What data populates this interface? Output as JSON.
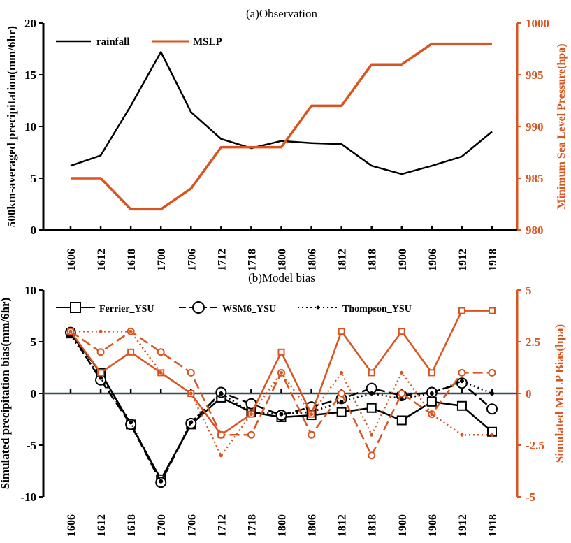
{
  "chart_data": [
    {
      "type": "line",
      "title": "(a)Observation",
      "categories": [
        "1606",
        "1612",
        "1618",
        "1700",
        "1706",
        "1712",
        "1718",
        "1800",
        "1806",
        "1812",
        "1818",
        "1900",
        "1906",
        "1912",
        "1918"
      ],
      "ylabel_left": "500km-averaged precipitation(mm/6hr)",
      "ylabel_right": "Minimum Sea Level Pressure(hpa)",
      "ylim_left": [
        0,
        20
      ],
      "ylim_right": [
        980,
        1000
      ],
      "yticks_left": [
        "0",
        "5",
        "10",
        "15",
        "20"
      ],
      "yticks_right": [
        "980",
        "985",
        "990",
        "995",
        "1000"
      ],
      "legend_position": "top-left",
      "series": [
        {
          "name": "rainfall",
          "axis": "left",
          "color": "#000000",
          "values": [
            6.2,
            7.2,
            12.0,
            17.2,
            11.4,
            8.8,
            7.9,
            8.6,
            8.4,
            8.3,
            6.2,
            5.4,
            6.2,
            7.1,
            9.5
          ]
        },
        {
          "name": "MSLP",
          "axis": "right",
          "color": "#d9541e",
          "values": [
            985,
            985,
            982,
            982,
            984,
            988,
            988,
            988,
            992,
            992,
            996,
            996,
            998,
            998,
            998
          ]
        }
      ]
    },
    {
      "type": "line",
      "title": "(b)Model bias",
      "categories": [
        "1606",
        "1612",
        "1618",
        "1700",
        "1706",
        "1712",
        "1718",
        "1800",
        "1806",
        "1812",
        "1818",
        "1900",
        "1906",
        "1912",
        "1918"
      ],
      "ylabel_left": "Simulated precipitation bias(mm/6hr)",
      "ylabel_right": "Simulated MSLP Bias(hpa)",
      "ylim_left": [
        -10,
        10
      ],
      "ylim_right": [
        -5,
        5
      ],
      "yticks_left": [
        "-10",
        "-5",
        "0",
        "5",
        "10"
      ],
      "yticks_right": [
        "-5",
        "-2.5",
        "0",
        "2.5",
        "5"
      ],
      "legend_position": "top",
      "zero_line": true,
      "series": [
        {
          "name": "Ferrier_YSU",
          "axis": "left",
          "color": "#000000",
          "style": "solid",
          "marker": "square",
          "values": [
            5.8,
            2.0,
            -3.0,
            -8.3,
            -3.0,
            -0.4,
            -1.8,
            -2.3,
            -2.1,
            -1.8,
            -1.4,
            -2.6,
            -0.8,
            -1.2,
            -3.7
          ]
        },
        {
          "name": "WSM6_YSU",
          "axis": "left",
          "color": "#000000",
          "style": "dashed",
          "marker": "circle",
          "values": [
            5.9,
            1.3,
            -3.0,
            -8.6,
            -2.9,
            0.1,
            -1.0,
            -2.1,
            -1.3,
            -0.5,
            0.5,
            -0.2,
            0.1,
            1.0,
            -1.5
          ]
        },
        {
          "name": "Thompson_YSU",
          "axis": "left",
          "color": "#000000",
          "style": "dotted",
          "marker": "dot",
          "values": [
            5.6,
            1.5,
            -2.8,
            -8.5,
            -2.8,
            0.0,
            -1.8,
            -2.0,
            -1.8,
            -0.8,
            0.0,
            -0.5,
            0.0,
            1.2,
            0.0
          ]
        },
        {
          "axis": "right",
          "color": "#d9541e",
          "style": "solid",
          "marker": "square",
          "values": [
            3,
            1,
            2,
            1,
            0,
            -2,
            -1,
            2,
            -1,
            3,
            1,
            3,
            1,
            4,
            4
          ]
        },
        {
          "axis": "right",
          "color": "#d9541e",
          "style": "dashed",
          "marker": "circle",
          "values": [
            3,
            2,
            3,
            2,
            1,
            -2,
            -2,
            1,
            -2,
            0,
            -3,
            0,
            -1,
            1,
            1
          ]
        },
        {
          "axis": "right",
          "color": "#d9541e",
          "style": "dotted",
          "marker": "dot",
          "values": [
            3,
            3,
            3,
            1,
            0,
            -3,
            -1,
            1,
            -1,
            1,
            -2,
            1,
            -1,
            -2,
            -2
          ]
        }
      ]
    }
  ]
}
